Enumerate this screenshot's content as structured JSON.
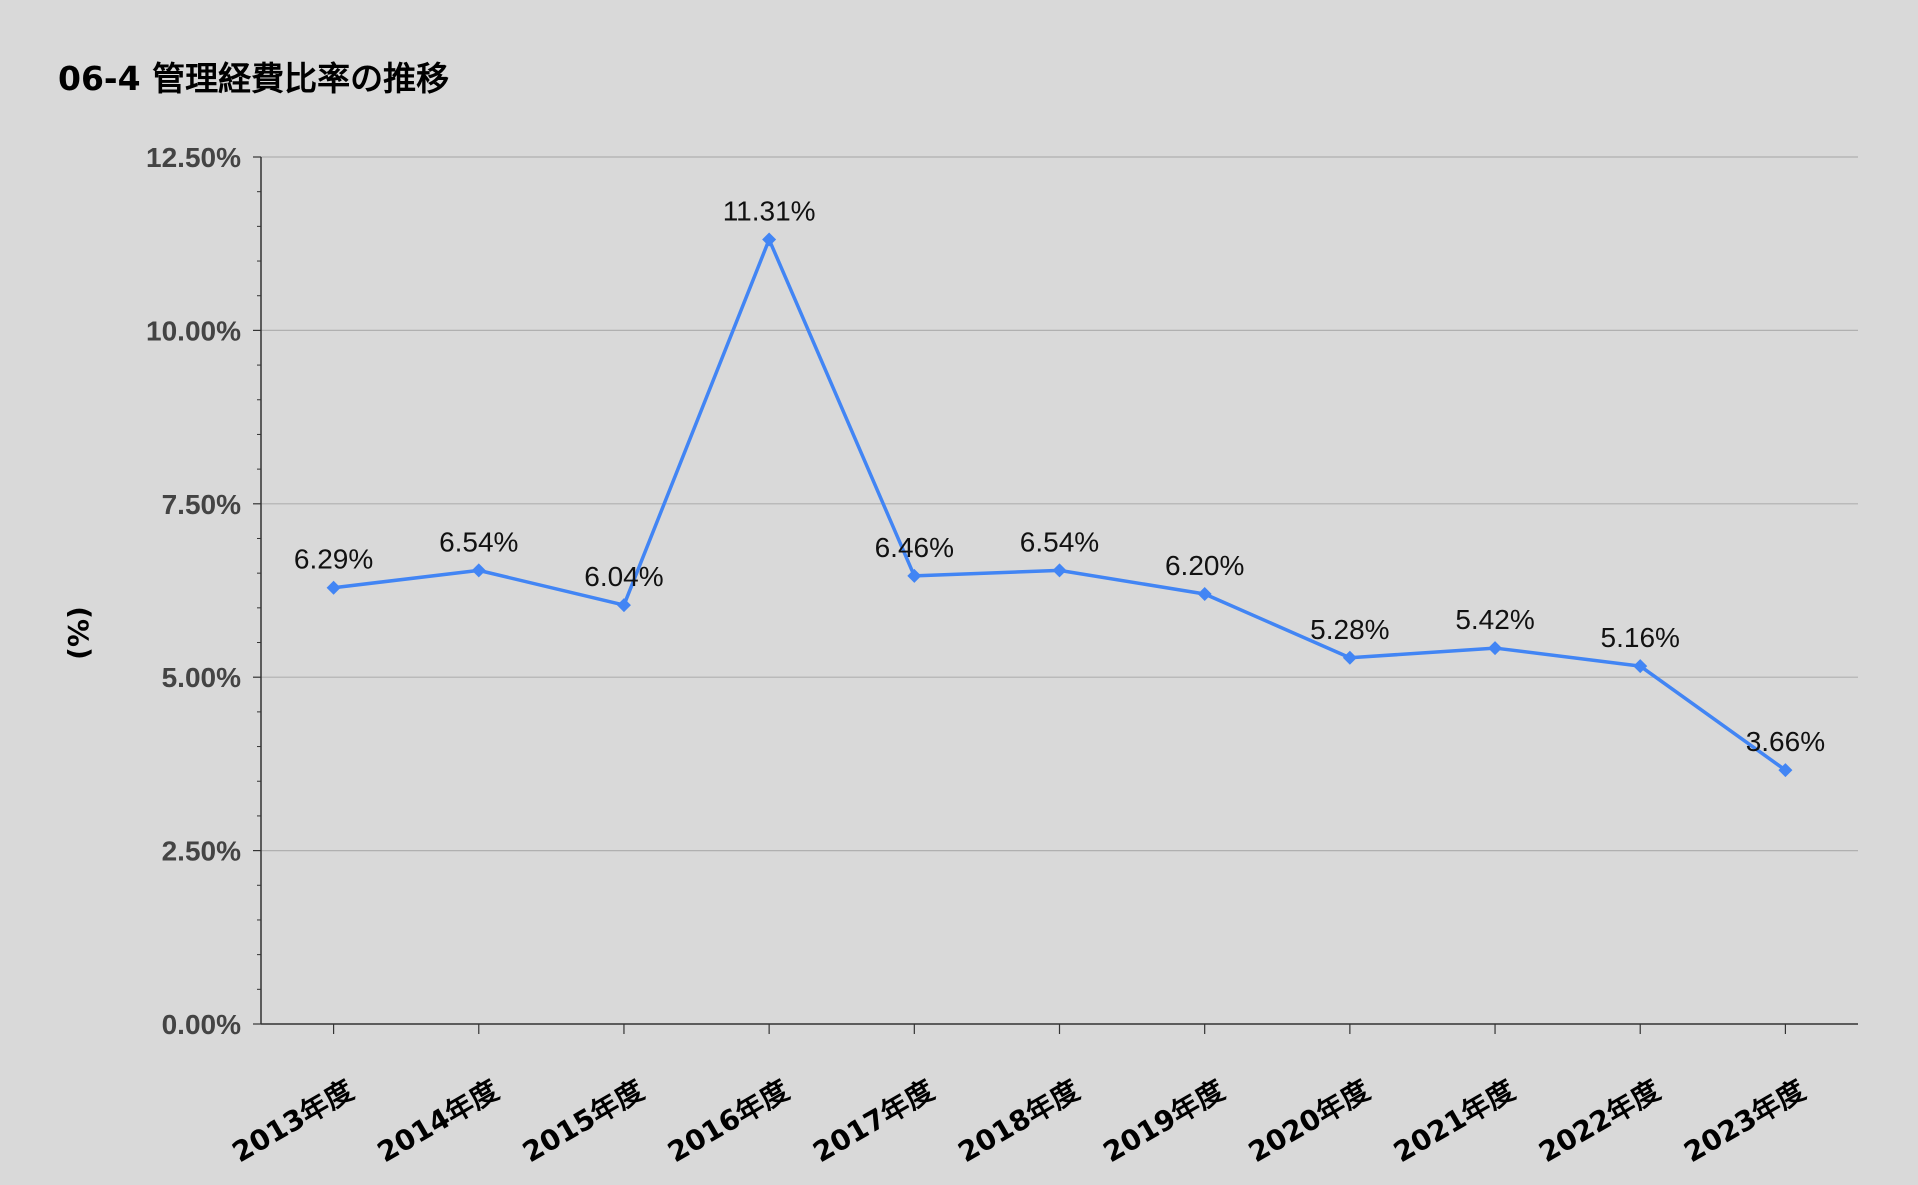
{
  "chart_data": {
    "type": "line",
    "title": "06-4 管理経費比率の推移",
    "xlabel": "",
    "ylabel": "(%)",
    "categories": [
      "2013年度",
      "2014年度",
      "2015年度",
      "2016年度",
      "2017年度",
      "2018年度",
      "2019年度",
      "2020年度",
      "2021年度",
      "2022年度",
      "2023年度"
    ],
    "series": [
      {
        "values": [
          6.29,
          6.54,
          6.04,
          11.31,
          6.46,
          6.54,
          6.2,
          5.28,
          5.42,
          5.16,
          3.66
        ],
        "data_labels": [
          "6.29%",
          "6.54%",
          "6.04%",
          "11.31%",
          "6.46%",
          "6.54%",
          "6.20%",
          "5.28%",
          "5.42%",
          "5.16%",
          "3.66%"
        ],
        "color": "#4285f4",
        "marker": "diamond"
      }
    ],
    "ylim": [
      0,
      12.5
    ],
    "yticks": [
      0,
      2.5,
      5,
      7.5,
      10,
      12.5
    ],
    "ytick_labels": [
      "0.00%",
      "2.50%",
      "5.00%",
      "7.50%",
      "10.00%",
      "12.50%"
    ],
    "grid": true,
    "legend": "none",
    "colors": {
      "background": "#d9d9d9",
      "gridline": "#b0b0b0",
      "axis": "#333333"
    }
  }
}
